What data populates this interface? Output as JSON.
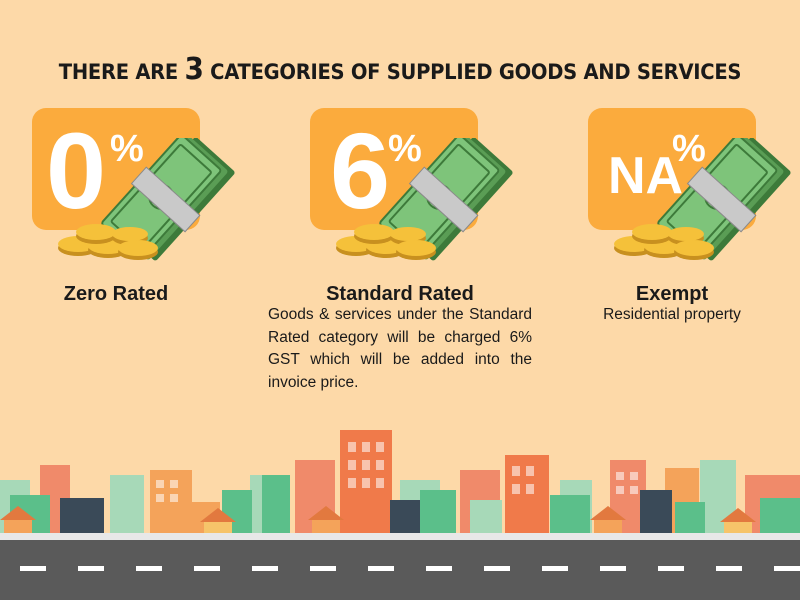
{
  "title": {
    "prefix": "THERE ARE ",
    "number": "3",
    "suffix": " CATEGORIES OF SUPPLIED GOODS AND SERVICES"
  },
  "categories": [
    {
      "value": "0",
      "percent": "%",
      "label": "Zero Rated",
      "description": ""
    },
    {
      "value": "6",
      "percent": "%",
      "label": "Standard Rated",
      "description": "Goods & services under the Standard Rated category will be charged 6% GST which will be added into the invoice price."
    },
    {
      "value": "NA",
      "percent": "%",
      "label": "Exempt",
      "description": "Residential property"
    }
  ],
  "colors": {
    "background": "#fdd9a8",
    "badge": "#fbab3d",
    "money_green": "#6fb36b",
    "coin": "#f5c13a",
    "road": "#5a5a5a"
  },
  "icons": [
    "money-stack-icon",
    "gold-coins-icon",
    "city-skyline-icon"
  ]
}
